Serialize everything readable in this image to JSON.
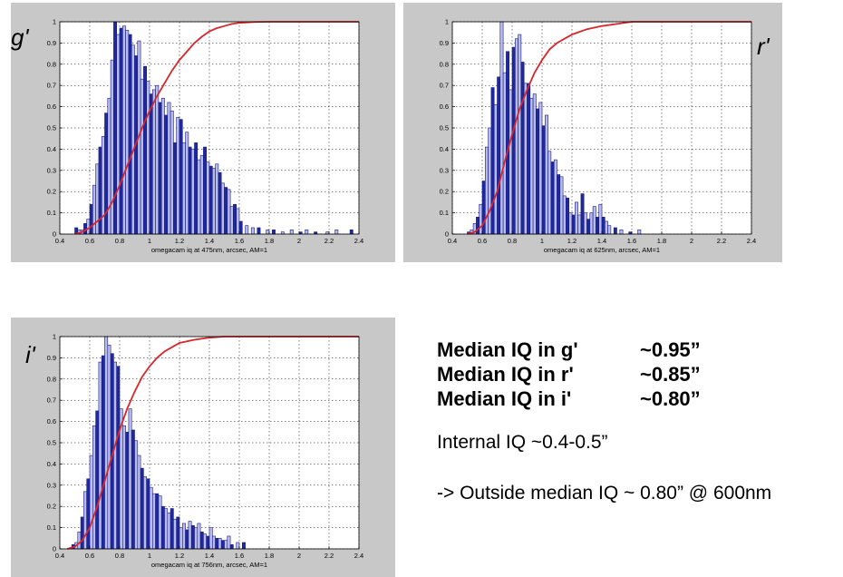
{
  "chart_data": [
    {
      "type": "bar",
      "band_label": "g'",
      "xlabel": "omegacam iq at 475nm, arcsec, AM=1",
      "xlim": [
        0.4,
        2.4
      ],
      "ylim": [
        0,
        1
      ],
      "xticks": [
        "0.4",
        "0.6",
        "0.8",
        "1",
        "1.2",
        "1.4",
        "1.6",
        "1.8",
        "2",
        "2.2",
        "2.4"
      ],
      "yticks": [
        "0",
        "0.1",
        "0.2",
        "0.3",
        "0.4",
        "0.5",
        "0.6",
        "0.7",
        "0.8",
        "0.9",
        "1"
      ],
      "grid": true,
      "bin_width": 0.02,
      "bins": {
        "x": [
          0.51,
          0.53,
          0.55,
          0.57,
          0.59,
          0.61,
          0.63,
          0.65,
          0.67,
          0.69,
          0.71,
          0.73,
          0.75,
          0.77,
          0.79,
          0.81,
          0.83,
          0.85,
          0.87,
          0.89,
          0.91,
          0.93,
          0.95,
          0.97,
          0.99,
          1.01,
          1.03,
          1.05,
          1.07,
          1.09,
          1.11,
          1.13,
          1.15,
          1.17,
          1.19,
          1.21,
          1.23,
          1.25,
          1.27,
          1.29,
          1.31,
          1.33,
          1.35,
          1.37,
          1.39,
          1.41,
          1.43,
          1.45,
          1.47,
          1.49,
          1.51,
          1.53,
          1.55,
          1.57,
          1.59,
          1.61,
          1.65,
          1.69,
          1.73,
          1.79,
          1.83,
          1.89,
          1.95,
          2.01,
          2.05,
          2.11,
          2.19,
          2.25,
          2.35
        ],
        "y": [
          0.03,
          0.02,
          0.02,
          0.05,
          0.07,
          0.14,
          0.23,
          0.33,
          0.41,
          0.46,
          0.57,
          0.64,
          0.82,
          1.0,
          0.94,
          0.97,
          0.98,
          0.96,
          0.94,
          0.89,
          0.84,
          0.91,
          0.73,
          0.79,
          0.72,
          0.66,
          0.68,
          0.7,
          0.62,
          0.64,
          0.56,
          0.62,
          0.58,
          0.43,
          0.55,
          0.54,
          0.43,
          0.48,
          0.41,
          0.4,
          0.43,
          0.35,
          0.37,
          0.41,
          0.34,
          0.32,
          0.31,
          0.33,
          0.29,
          0.24,
          0.22,
          0.21,
          0.13,
          0.14,
          0.12,
          0.06,
          0.04,
          0.03,
          0.03,
          0.02,
          0.02,
          0.01,
          0.02,
          0.01,
          0.02,
          0.01,
          0.01,
          0.02,
          0.02
        ]
      },
      "cumulative": {
        "x": [
          0.5,
          0.55,
          0.6,
          0.65,
          0.7,
          0.75,
          0.8,
          0.85,
          0.9,
          0.95,
          1.0,
          1.05,
          1.1,
          1.15,
          1.2,
          1.25,
          1.3,
          1.35,
          1.4,
          1.45,
          1.5,
          1.55,
          1.6,
          1.7,
          1.8,
          2.0,
          2.4
        ],
        "y": [
          0,
          0.01,
          0.03,
          0.06,
          0.09,
          0.15,
          0.23,
          0.32,
          0.41,
          0.5,
          0.58,
          0.65,
          0.71,
          0.77,
          0.82,
          0.86,
          0.9,
          0.93,
          0.955,
          0.97,
          0.98,
          0.99,
          0.995,
          0.999,
          1,
          1,
          1
        ]
      }
    },
    {
      "type": "bar",
      "band_label": "r'",
      "xlabel": "omegacam iq at 625nm, arcsec, AM=1",
      "xlim": [
        0.4,
        2.4
      ],
      "ylim": [
        0,
        1
      ],
      "xticks": [
        "0.4",
        "0.6",
        "0.8",
        "1",
        "1.2",
        "1.4",
        "1.6",
        "1.8",
        "2",
        "2.2",
        "2.4"
      ],
      "yticks": [
        "0",
        "0.1",
        "0.2",
        "0.3",
        "0.4",
        "0.5",
        "0.6",
        "0.7",
        "0.8",
        "0.9",
        "1"
      ],
      "grid": true,
      "bin_width": 0.02,
      "bins": {
        "x": [
          0.51,
          0.53,
          0.55,
          0.57,
          0.59,
          0.61,
          0.63,
          0.65,
          0.67,
          0.69,
          0.71,
          0.73,
          0.75,
          0.77,
          0.79,
          0.81,
          0.83,
          0.85,
          0.87,
          0.89,
          0.91,
          0.93,
          0.95,
          0.97,
          0.99,
          1.01,
          1.03,
          1.05,
          1.07,
          1.09,
          1.11,
          1.13,
          1.15,
          1.17,
          1.19,
          1.21,
          1.23,
          1.25,
          1.27,
          1.29,
          1.31,
          1.33,
          1.35,
          1.37,
          1.39,
          1.41,
          1.43,
          1.45,
          1.49,
          1.53,
          1.59,
          1.65
        ],
        "y": [
          0.01,
          0.02,
          0.05,
          0.08,
          0.14,
          0.25,
          0.41,
          0.5,
          0.69,
          0.61,
          0.74,
          1.0,
          0.76,
          0.86,
          0.68,
          0.88,
          0.92,
          0.94,
          0.81,
          0.71,
          0.71,
          0.64,
          0.66,
          0.59,
          0.62,
          0.51,
          0.56,
          0.39,
          0.34,
          0.35,
          0.28,
          0.27,
          0.18,
          0.17,
          0.1,
          0.09,
          0.15,
          0.09,
          0.19,
          0.1,
          0.07,
          0.1,
          0.13,
          0.08,
          0.14,
          0.08,
          0.06,
          0.04,
          0.03,
          0.02,
          0.01,
          0.02
        ]
      },
      "cumulative": {
        "x": [
          0.5,
          0.55,
          0.6,
          0.65,
          0.7,
          0.75,
          0.8,
          0.85,
          0.9,
          0.95,
          1.0,
          1.05,
          1.1,
          1.15,
          1.2,
          1.3,
          1.4,
          1.5,
          1.6,
          1.8,
          2.4
        ],
        "y": [
          0,
          0.01,
          0.04,
          0.11,
          0.2,
          0.34,
          0.47,
          0.59,
          0.68,
          0.76,
          0.82,
          0.87,
          0.9,
          0.92,
          0.94,
          0.965,
          0.98,
          0.99,
          1,
          1,
          1
        ]
      }
    },
    {
      "type": "bar",
      "band_label": "i'",
      "xlabel": "omegacam iq at 756nm, arcsec, AM=1",
      "xlim": [
        0.4,
        2.4
      ],
      "ylim": [
        0,
        1
      ],
      "xticks": [
        "0.4",
        "0.6",
        "0.8",
        "1",
        "1.2",
        "1.4",
        "1.6",
        "1.8",
        "2",
        "2.2",
        "2.4"
      ],
      "yticks": [
        "0",
        "0.1",
        "0.2",
        "0.3",
        "0.4",
        "0.5",
        "0.6",
        "0.7",
        "0.8",
        "0.9",
        "1"
      ],
      "grid": true,
      "bin_width": 0.02,
      "bins": {
        "x": [
          0.49,
          0.51,
          0.53,
          0.55,
          0.57,
          0.59,
          0.61,
          0.63,
          0.65,
          0.67,
          0.69,
          0.71,
          0.73,
          0.75,
          0.77,
          0.79,
          0.81,
          0.83,
          0.85,
          0.87,
          0.89,
          0.91,
          0.93,
          0.95,
          0.97,
          0.99,
          1.01,
          1.03,
          1.05,
          1.07,
          1.09,
          1.11,
          1.13,
          1.15,
          1.17,
          1.19,
          1.21,
          1.23,
          1.25,
          1.27,
          1.29,
          1.31,
          1.33,
          1.35,
          1.37,
          1.39,
          1.41,
          1.43,
          1.45,
          1.47,
          1.49,
          1.51,
          1.53,
          1.55,
          1.59,
          1.63
        ],
        "y": [
          0.02,
          0.03,
          0.08,
          0.15,
          0.27,
          0.33,
          0.44,
          0.58,
          0.65,
          0.88,
          0.91,
          1.0,
          0.96,
          0.92,
          0.88,
          0.86,
          0.66,
          0.58,
          0.55,
          0.66,
          0.56,
          0.51,
          0.44,
          0.38,
          0.34,
          0.33,
          0.29,
          0.26,
          0.26,
          0.25,
          0.2,
          0.19,
          0.17,
          0.19,
          0.14,
          0.15,
          0.1,
          0.12,
          0.09,
          0.13,
          0.11,
          0.1,
          0.12,
          0.08,
          0.07,
          0.06,
          0.1,
          0.06,
          0.05,
          0.05,
          0.04,
          0.04,
          0.06,
          0.02,
          0.03,
          0.03
        ]
      },
      "cumulative": {
        "x": [
          0.45,
          0.5,
          0.55,
          0.6,
          0.65,
          0.7,
          0.75,
          0.8,
          0.85,
          0.9,
          0.95,
          1.0,
          1.05,
          1.1,
          1.15,
          1.2,
          1.3,
          1.4,
          1.5,
          1.6,
          1.8,
          2.4
        ],
        "y": [
          0,
          0.01,
          0.04,
          0.1,
          0.2,
          0.32,
          0.44,
          0.56,
          0.66,
          0.74,
          0.81,
          0.86,
          0.9,
          0.93,
          0.95,
          0.97,
          0.985,
          0.995,
          1,
          1,
          1,
          1
        ]
      }
    }
  ],
  "colors": {
    "bar_dark_fill": "#1e2a9a",
    "bar_light_fill": "#b8bce8",
    "bar_stroke": "#1a1a8a",
    "cumulative_line": "#d8262b",
    "panel_background": "#c8c8c8",
    "plot_background": "#ffffff"
  },
  "stats": {
    "rows": [
      {
        "label": "Median IQ in g'",
        "value": "~0.95”"
      },
      {
        "label": "Median IQ in r'",
        "value": "~0.85”"
      },
      {
        "label": "Median IQ in i'",
        "value": "~0.80”"
      }
    ],
    "internal_iq": "Internal IQ ~0.4-0.5”",
    "outside_iq": "-> Outside median IQ ~ 0.80” @ 600nm"
  }
}
